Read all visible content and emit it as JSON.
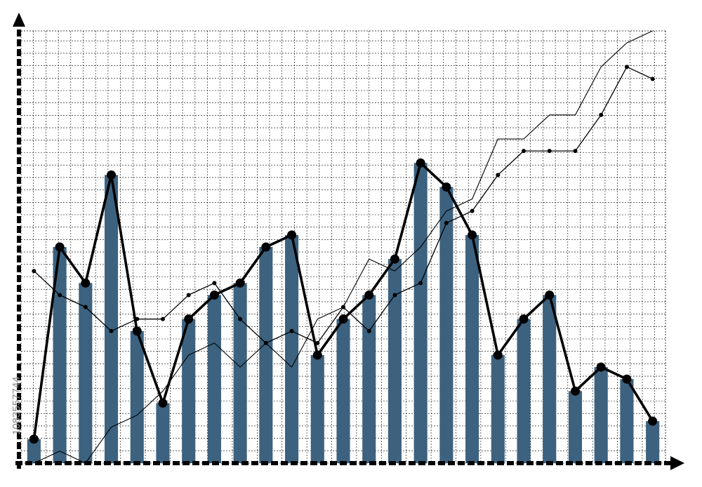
{
  "watermark": "1083557744",
  "colors": {
    "bar": "#3c627f",
    "line": "#000000",
    "grid": "#000000",
    "axis": "#000000",
    "background": "#ffffff"
  },
  "chart_data": {
    "type": "bar",
    "title": "",
    "xlabel": "",
    "ylabel": "",
    "grid": true,
    "legend": "none",
    "x": [
      1,
      2,
      3,
      4,
      5,
      6,
      7,
      8,
      9,
      10,
      11,
      12,
      13,
      14,
      15,
      16,
      17,
      18,
      19,
      20,
      21,
      22,
      23,
      24,
      25
    ],
    "ylim": [
      0,
      36
    ],
    "series": [
      {
        "type": "bar",
        "values": [
          2,
          18,
          15,
          24,
          11,
          5,
          12,
          14,
          15,
          18,
          19,
          9,
          12,
          14,
          17,
          25,
          23,
          19,
          9,
          12,
          14,
          6,
          8,
          7,
          3.5
        ]
      },
      {
        "type": "line",
        "markers": true,
        "values": [
          2,
          18,
          15,
          24,
          11,
          5,
          12,
          14,
          15,
          18,
          19,
          9,
          12,
          14,
          17,
          25,
          23,
          19,
          9,
          12,
          14,
          6,
          8,
          7,
          3.5
        ]
      },
      {
        "type": "line",
        "markers": true,
        "values": [
          16,
          14,
          13,
          11,
          12,
          12,
          14,
          15,
          12,
          10,
          11,
          10,
          13,
          11,
          14,
          15,
          20,
          21,
          24,
          26,
          26,
          26,
          29,
          33,
          32
        ]
      },
      {
        "type": "line",
        "markers": false,
        "values": [
          0,
          1,
          0,
          3,
          4,
          6,
          9,
          10,
          8,
          10,
          8,
          12,
          13,
          17,
          16,
          18,
          21,
          22,
          27,
          27,
          29,
          29,
          33,
          35,
          36
        ]
      }
    ]
  }
}
